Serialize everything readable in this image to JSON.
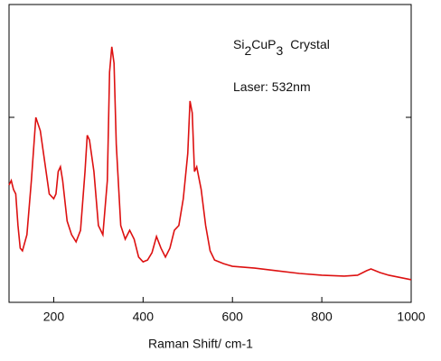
{
  "chart_data": {
    "type": "line",
    "xlabel": "Raman Shift/ cm-1",
    "annotations": [
      {
        "parts": [
          "Si",
          "2",
          "CuP",
          "3",
          "Crystal"
        ]
      },
      {
        "parts": [
          "Laser: 532nm"
        ]
      }
    ],
    "xlim": [
      100,
      1000
    ],
    "xticks": [
      200,
      400,
      600,
      800,
      1000
    ],
    "ylim": [
      0,
      100
    ],
    "series": [
      {
        "color": "#dd1111",
        "x": [
          100,
          105,
          110,
          115,
          120,
          125,
          130,
          140,
          150,
          160,
          170,
          180,
          190,
          200,
          205,
          210,
          215,
          220,
          230,
          240,
          250,
          260,
          270,
          275,
          280,
          290,
          300,
          310,
          320,
          325,
          330,
          335,
          340,
          350,
          360,
          370,
          380,
          390,
          400,
          410,
          420,
          430,
          440,
          450,
          460,
          470,
          480,
          490,
          500,
          505,
          510,
          515,
          520,
          530,
          540,
          550,
          560,
          580,
          600,
          650,
          700,
          750,
          800,
          850,
          880,
          900,
          910,
          930,
          950,
          1000
        ],
        "values": [
          39.4,
          40.9,
          37.9,
          36.4,
          25.8,
          18.2,
          17.3,
          22.7,
          40.9,
          62.1,
          57.6,
          47.0,
          36.4,
          34.8,
          36.4,
          43.9,
          45.5,
          40.9,
          27.3,
          22.7,
          20.3,
          24.2,
          43.9,
          56.1,
          54.5,
          43.9,
          25.8,
          22.7,
          40.9,
          77.3,
          85.8,
          80.3,
          53.0,
          25.8,
          21.2,
          24.2,
          21.2,
          15.2,
          13.6,
          14.2,
          16.7,
          22.1,
          18.2,
          15.2,
          18.2,
          24.2,
          25.8,
          34.8,
          50.0,
          67.6,
          63.6,
          43.9,
          45.5,
          37.9,
          25.8,
          17.3,
          14.2,
          13.0,
          12.1,
          11.5,
          10.6,
          9.7,
          9.1,
          8.8,
          9.1,
          10.6,
          11.2,
          10.0,
          9.1,
          7.6
        ]
      }
    ]
  }
}
